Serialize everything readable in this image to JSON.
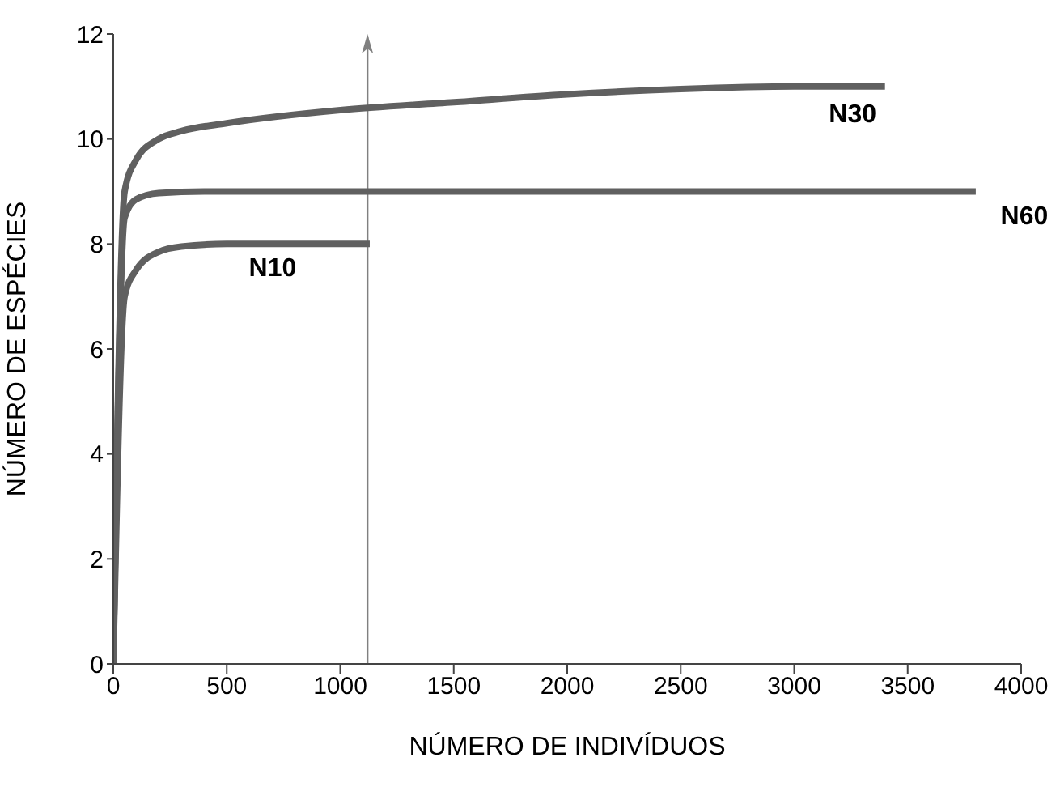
{
  "chart_data": {
    "type": "line",
    "xlabel": "NÚMERO DE INDIVÍDUOS",
    "ylabel": "NÚMERO DE ESPÉCIES",
    "xlim": [
      0,
      4000
    ],
    "xticks": [
      0,
      500,
      1000,
      1500,
      2000,
      2500,
      3000,
      3500,
      4000
    ],
    "ylim": [
      0,
      12
    ],
    "yticks": [
      0,
      2,
      4,
      6,
      8,
      10,
      12
    ],
    "marker": "none",
    "line_style": "solid",
    "series": [
      {
        "name": "N30",
        "color": "#606060",
        "x": [
          0,
          50,
          100,
          200,
          300,
          500,
          1000,
          1500,
          2000,
          2500,
          3000,
          3400
        ],
        "values": [
          0,
          9,
          9.6,
          10,
          10.15,
          10.3,
          10.55,
          10.7,
          10.85,
          10.95,
          11,
          11
        ]
      },
      {
        "name": "N60",
        "color": "#606060",
        "x": [
          0,
          50,
          100,
          200,
          400,
          3800
        ],
        "values": [
          0,
          8.5,
          8.85,
          8.97,
          9,
          9
        ]
      },
      {
        "name": "N10",
        "color": "#606060",
        "x": [
          0,
          50,
          100,
          200,
          300,
          500,
          1130
        ],
        "values": [
          0,
          7,
          7.5,
          7.85,
          7.95,
          8,
          8
        ]
      }
    ],
    "ref_lines": [
      {
        "axis": "x",
        "value": 1120,
        "color": "#808080"
      }
    ]
  }
}
